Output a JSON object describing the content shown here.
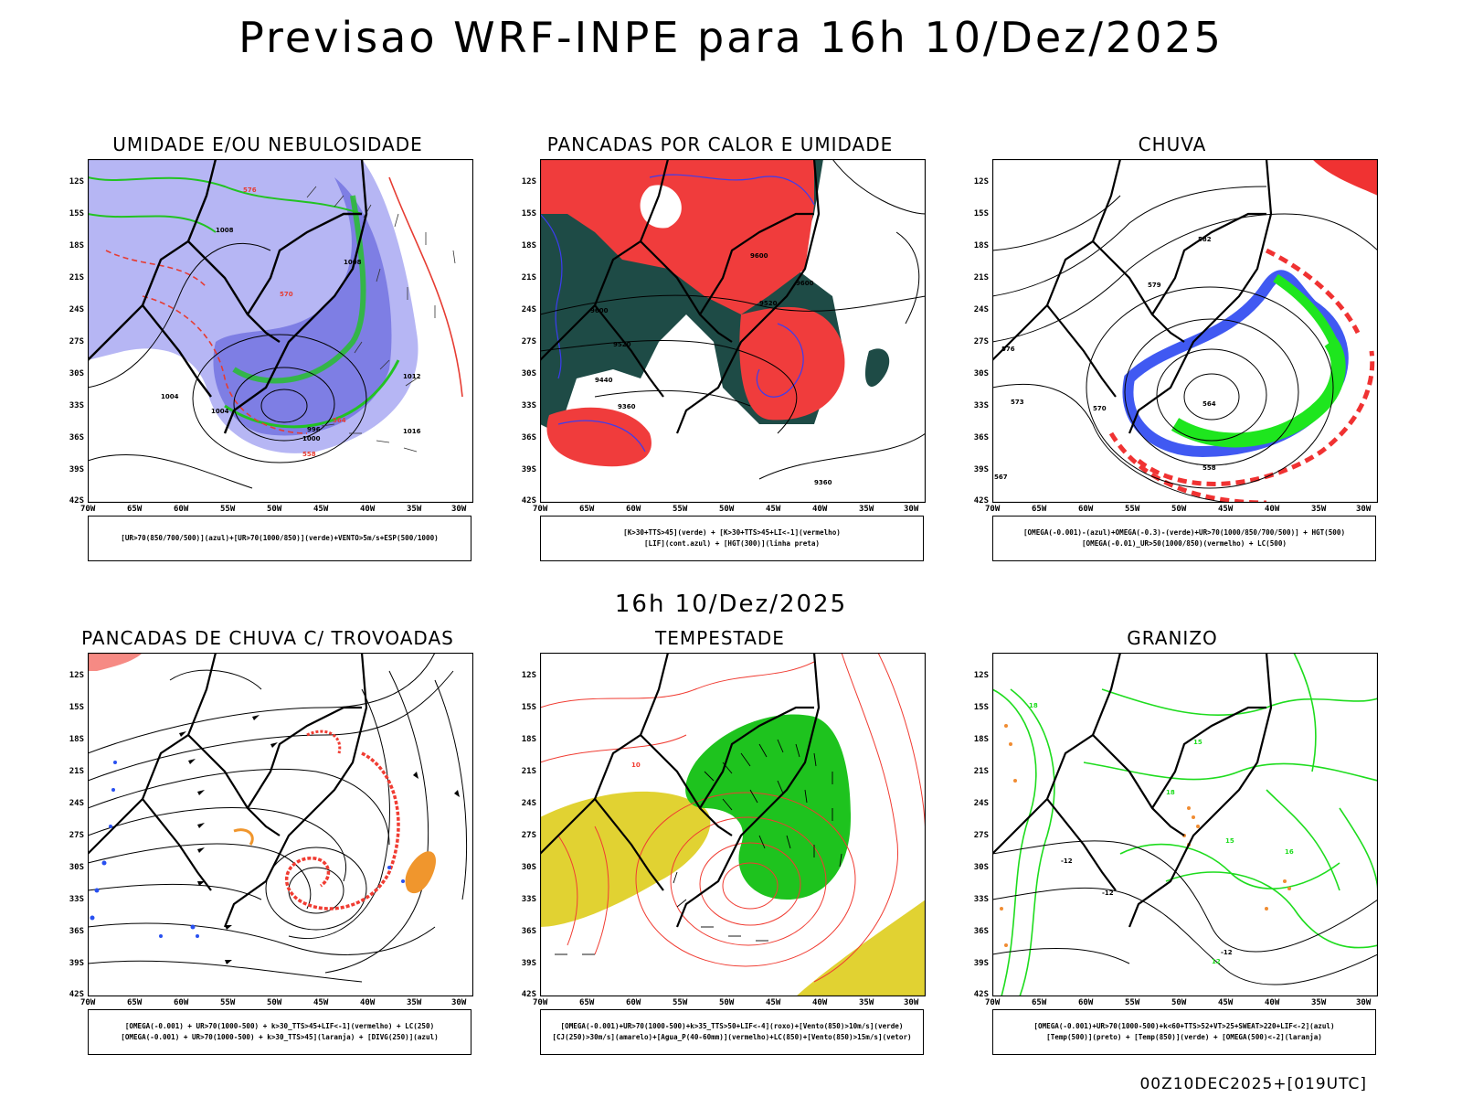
{
  "main_title": "Previsao WRF-INPE  para 16h 10/Dez/2025",
  "sub_title": "16h 10/Dez/2025",
  "footer": "00Z10DEC2025+[019UTC]",
  "axes": {
    "lat_labels": [
      "12S",
      "15S",
      "18S",
      "21S",
      "24S",
      "27S",
      "30S",
      "33S",
      "36S",
      "39S",
      "42S"
    ],
    "lon_labels": [
      "70W",
      "65W",
      "60W",
      "55W",
      "50W",
      "45W",
      "40W",
      "35W",
      "30W"
    ],
    "lat_range_deg": [
      -42,
      -10
    ],
    "lon_range_deg": [
      -70,
      -29
    ]
  },
  "panels": [
    {
      "title": "UMIDADE E/OU NEBULOSIDADE",
      "legend": [
        "[UR>70(850/700/500)](azul)+[UR>70(1000/850)](verde)+VENTO>5m/s+ESP(500/1000)"
      ],
      "contour_labels": [
        "1008",
        "1004",
        "1004",
        "1008",
        "1012",
        "1016",
        "1000",
        "996",
        "564",
        "576",
        "570",
        "558"
      ],
      "colors": {
        "azul": "#8c8cf0",
        "verde": "#22c322",
        "vermelho": "#e63c32"
      }
    },
    {
      "title": "PANCADAS POR CALOR E UMIDADE",
      "legend": [
        "[K>30+TTS>45](verde)  +  [K>30+TTS>45+LI<-1](vermelho)",
        "[LIF](cont.azul)  +  [HGT(300)](linha preta)"
      ],
      "contour_labels": [
        "9600",
        "9600",
        "9520",
        "9440",
        "9360",
        "9360",
        "9520",
        "9600"
      ],
      "colors": {
        "verde": "#1e4b46",
        "vermelho": "#f03c3c",
        "azul": "#3c3cf0"
      }
    },
    {
      "title": "CHUVA",
      "legend": [
        "[OMEGA(-0.001)-(azul)+OMEGA(-0.3)-(verde)+UR>70(1000/850/700/500)]  +  HGT(500)",
        "[OMEGA(-0.01)_UR>50(1000/850)(vermelho)  +  LC(500)"
      ],
      "contour_labels": [
        "582",
        "579",
        "576",
        "573",
        "570",
        "564",
        "558",
        "567"
      ],
      "colors": {
        "azul": "#1e3cf0",
        "verde": "#1ee61e",
        "vermelho": "#f03232"
      }
    },
    {
      "title": "PANCADAS DE CHUVA C/ TROVOADAS",
      "legend": [
        "[OMEGA(-0.001)  +  UR>70(1000-500)  +  k>30_TTS>45+LIF<-1](vermelho)  +  LC(250)",
        "[OMEGA(-0.001)  +  UR>70(1000-500)  +  k>30_TTS>45](laranja)  +  [DIVG(250)](azul)"
      ],
      "contour_labels": [],
      "colors": {
        "vermelho": "#f03c32",
        "laranja": "#f0962d",
        "azul": "#2850f0"
      }
    },
    {
      "title": "TEMPESTADE",
      "legend": [
        "[OMEGA(-0.001)+UR>70(1000-500)+k>35_TTS>50+LIF<-4](roxo)+[Vento(850)>10m/s](verde)",
        "[CJ(250)>30m/s](amarelo)+[Agua_P(40-60mm)](vermelho)+LC(850)+[Vento(850)>15m/s](vetor)"
      ],
      "contour_labels": [
        "10"
      ],
      "colors": {
        "verde": "#1ec31e",
        "amarelo": "#e1d232",
        "vermelho": "#f03c32"
      }
    },
    {
      "title": "GRANIZO",
      "legend": [
        "[OMEGA(-0.001)+UR>70(1000-500)+k<60+TTS>52+VT>25+SWEAT>220+LIF<-2](azul)",
        "[Temp(500)](preto)  +  [Temp(850)](verde)  +  [OMEGA(500)<-2](laranja)"
      ],
      "contour_labels": [
        "-12",
        "-12",
        "-12",
        "15",
        "15",
        "18",
        "12",
        "16",
        "18"
      ],
      "colors": {
        "verde": "#1edc1e",
        "laranja": "#f08c32"
      }
    }
  ]
}
